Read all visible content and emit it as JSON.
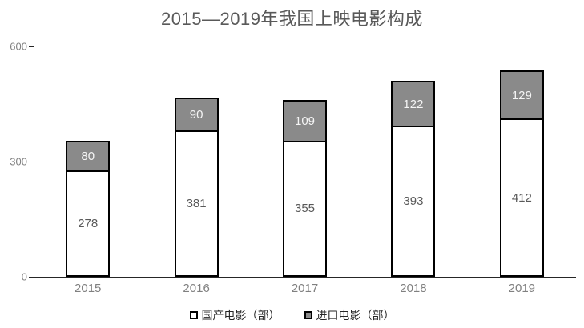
{
  "chart_data": {
    "type": "bar",
    "stacked": true,
    "title": "2015—2019年我国上映电影构成",
    "categories": [
      "2015",
      "2016",
      "2017",
      "2018",
      "2019"
    ],
    "series": [
      {
        "key": "domestic",
        "name": "国产电影（部）",
        "values": [
          278,
          381,
          355,
          393,
          412
        ],
        "color": "#ffffff",
        "label_color": "#595959"
      },
      {
        "key": "imported",
        "name": "进口电影（部）",
        "values": [
          80,
          90,
          109,
          122,
          129
        ],
        "color": "#8a8a8a",
        "label_color": "#f5f5f5"
      }
    ],
    "xlabel": "",
    "ylabel": "",
    "ylim": [
      0,
      600
    ],
    "yticks": [
      0,
      300,
      600
    ],
    "grid": false,
    "legend_position": "bottom",
    "bar_border_color": "#000000",
    "axis_color": "#262626",
    "background": "#ffffff"
  }
}
